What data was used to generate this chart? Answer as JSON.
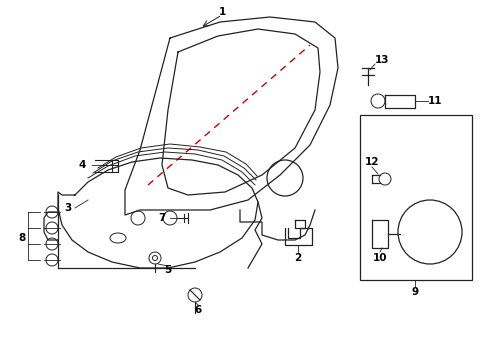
{
  "bg_color": "#ffffff",
  "line_color": "#222222",
  "red_color": "#cc0000",
  "label_color": "#000000",
  "figsize": [
    4.89,
    3.6
  ],
  "dpi": 100
}
